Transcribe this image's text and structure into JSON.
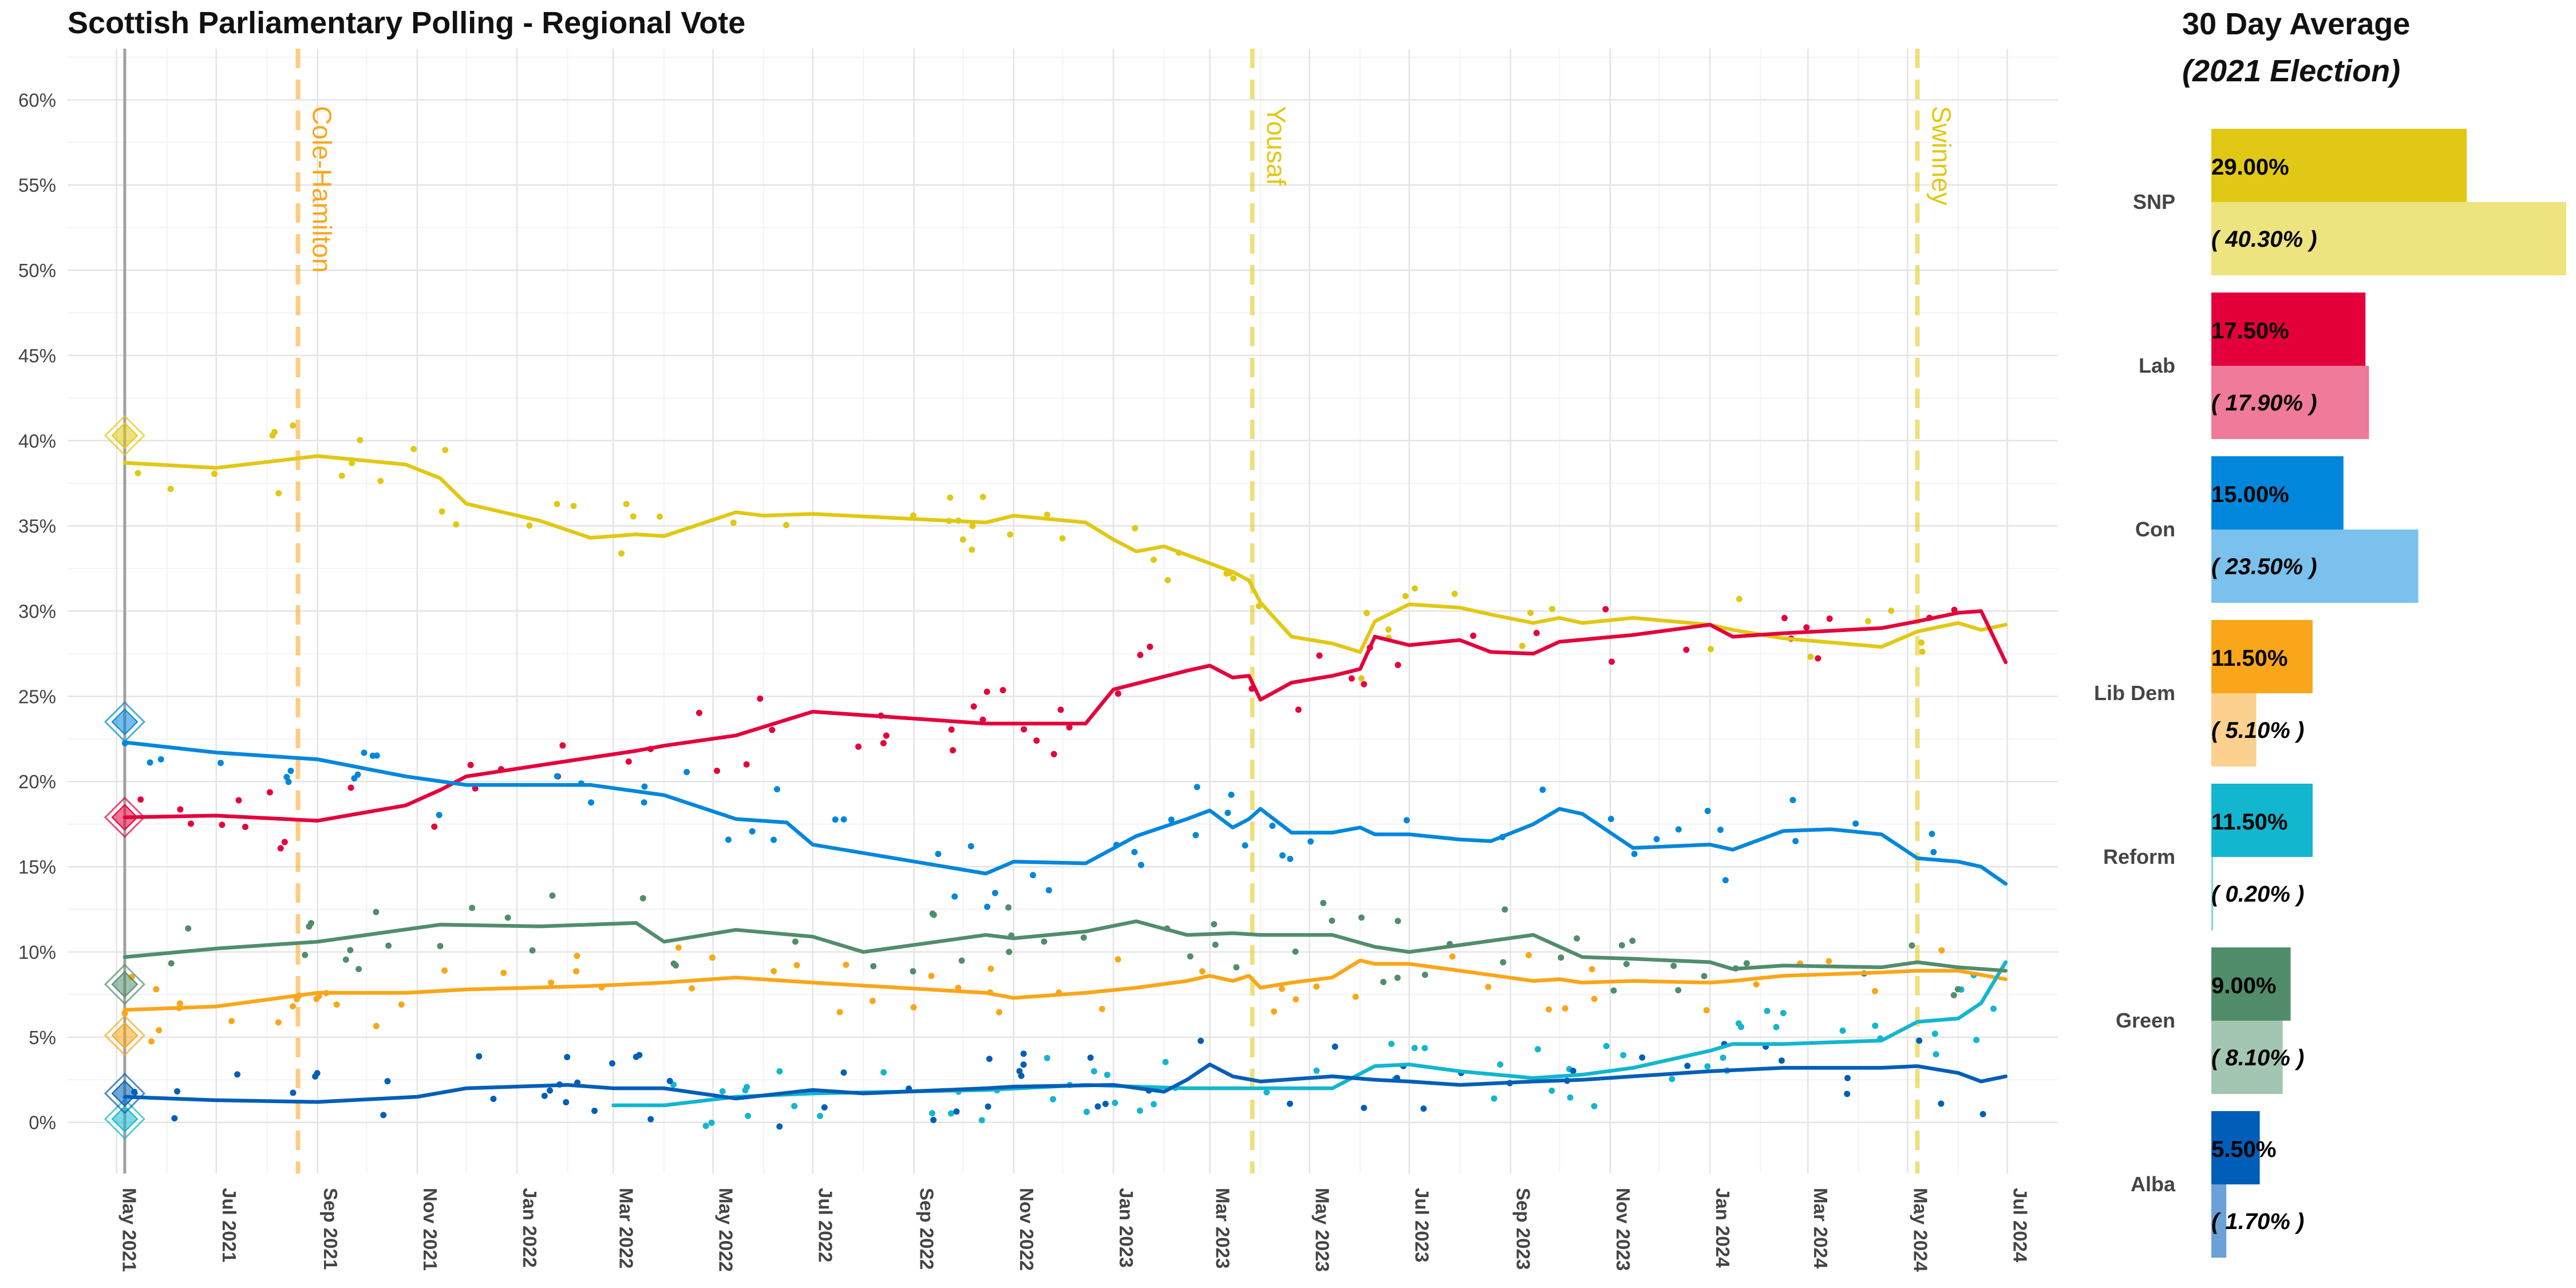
{
  "chart_data": [
    {
      "type": "line",
      "title": "Scottish Parliamentary Polling - Regional Vote",
      "xlabel": "",
      "ylabel": "",
      "ylim": [
        -3,
        63
      ],
      "xlim": [
        "2021-04-01",
        "2024-08-01"
      ],
      "y_ticks": [
        "0%",
        "5%",
        "10%",
        "15%",
        "20%",
        "25%",
        "30%",
        "35%",
        "40%",
        "45%",
        "50%",
        "55%",
        "60%"
      ],
      "x_ticks": [
        "May 2021",
        "Jul 2021",
        "Sep 2021",
        "Nov 2021",
        "Jan 2022",
        "Mar 2022",
        "May 2022",
        "Jul 2022",
        "Sep 2022",
        "Nov 2022",
        "Jan 2023",
        "Mar 2023",
        "May 2023",
        "Jul 2023",
        "Sep 2023",
        "Nov 2023",
        "Jan 2024",
        "Mar 2024",
        "May 2024",
        "Jul 2024"
      ],
      "grid": true,
      "election_date": "2021-05-06",
      "leader_changes": [
        {
          "label": "Cole-Hamilton",
          "date": "2021-08-20",
          "color": "#FAA61A"
        },
        {
          "label": "Yousaf",
          "date": "2023-03-27",
          "color": "#E1C814"
        },
        {
          "label": "Swinney",
          "date": "2024-05-07",
          "color": "#E1C814"
        }
      ],
      "series": [
        {
          "name": "SNP",
          "color": "#E1C814",
          "election_result": 40.3,
          "x": [
            "2021-05-06",
            "2021-07-01",
            "2021-09-01",
            "2021-10-25",
            "2021-11-15",
            "2021-12-01",
            "2022-01-15",
            "2022-02-15",
            "2022-03-15",
            "2022-04-01",
            "2022-05-15",
            "2022-06-01",
            "2022-07-01",
            "2022-10-15",
            "2022-11-01",
            "2022-12-15",
            "2023-01-01",
            "2023-01-15",
            "2023-02-01",
            "2023-02-15",
            "2023-03-01",
            "2023-03-15",
            "2023-03-25",
            "2023-04-01",
            "2023-04-20",
            "2023-05-15",
            "2023-06-01",
            "2023-06-10",
            "2023-07-01",
            "2023-08-01",
            "2023-08-20",
            "2023-09-15",
            "2023-10-01",
            "2023-10-15",
            "2023-11-15",
            "2024-01-01",
            "2024-01-15",
            "2024-02-15",
            "2024-04-15",
            "2024-05-07",
            "2024-06-01",
            "2024-06-15",
            "2024-06-30"
          ],
          "y": [
            38.7,
            38.4,
            39.1,
            38.6,
            37.8,
            36.3,
            35.3,
            34.3,
            34.5,
            34.4,
            35.8,
            35.6,
            35.7,
            35.2,
            35.6,
            35.2,
            34.2,
            33.5,
            33.8,
            33.3,
            32.8,
            32.3,
            31.8,
            30.5,
            28.5,
            28.1,
            27.6,
            29.4,
            30.4,
            30.2,
            29.8,
            29.3,
            29.6,
            29.3,
            29.6,
            29.2,
            28.9,
            28.4,
            27.9,
            28.8,
            29.3,
            28.9,
            29.2
          ]
        },
        {
          "name": "Lab",
          "color": "#E4003B",
          "election_result": 17.9,
          "x": [
            "2021-05-06",
            "2021-07-01",
            "2021-09-01",
            "2021-10-25",
            "2021-11-15",
            "2021-12-01",
            "2022-02-01",
            "2022-03-15",
            "2022-04-01",
            "2022-05-15",
            "2022-07-01",
            "2022-10-15",
            "2022-11-01",
            "2022-12-15",
            "2023-01-01",
            "2023-02-15",
            "2023-03-01",
            "2023-03-15",
            "2023-03-25",
            "2023-04-01",
            "2023-04-20",
            "2023-05-15",
            "2023-06-01",
            "2023-06-10",
            "2023-07-01",
            "2023-08-01",
            "2023-08-20",
            "2023-09-15",
            "2023-10-01",
            "2023-11-15",
            "2024-01-01",
            "2024-01-15",
            "2024-02-15",
            "2024-04-15",
            "2024-05-07",
            "2024-06-01",
            "2024-06-15",
            "2024-06-30"
          ],
          "y": [
            17.9,
            18.0,
            17.7,
            18.6,
            19.5,
            20.3,
            21.2,
            21.8,
            22.1,
            22.7,
            24.1,
            23.4,
            23.4,
            23.4,
            25.4,
            26.5,
            26.8,
            26.1,
            26.2,
            24.8,
            25.8,
            26.2,
            26.6,
            28.5,
            28.0,
            28.3,
            27.6,
            27.5,
            28.2,
            28.6,
            29.2,
            28.5,
            28.7,
            29.0,
            29.4,
            29.9,
            30.0,
            27.0
          ]
        },
        {
          "name": "Con",
          "color": "#0087DC",
          "election_result": 23.5,
          "x": [
            "2021-05-06",
            "2021-07-01",
            "2021-09-01",
            "2021-10-25",
            "2021-12-01",
            "2022-02-15",
            "2022-04-01",
            "2022-05-15",
            "2022-06-15",
            "2022-07-01",
            "2022-10-15",
            "2022-11-01",
            "2022-12-15",
            "2023-01-15",
            "2023-02-15",
            "2023-03-01",
            "2023-03-15",
            "2023-03-25",
            "2023-04-01",
            "2023-04-20",
            "2023-05-15",
            "2023-06-01",
            "2023-06-10",
            "2023-07-01",
            "2023-08-01",
            "2023-08-20",
            "2023-09-15",
            "2023-10-01",
            "2023-10-15",
            "2023-11-15",
            "2024-01-01",
            "2024-01-15",
            "2024-02-15",
            "2024-03-15",
            "2024-04-15",
            "2024-05-07",
            "2024-06-01",
            "2024-06-15",
            "2024-06-30"
          ],
          "y": [
            22.3,
            21.7,
            21.3,
            20.3,
            19.8,
            19.8,
            19.2,
            17.8,
            17.6,
            16.3,
            14.6,
            15.3,
            15.2,
            16.8,
            17.8,
            18.3,
            17.3,
            17.8,
            18.4,
            17.0,
            17.0,
            17.3,
            16.9,
            16.9,
            16.6,
            16.5,
            17.5,
            18.4,
            18.1,
            16.1,
            16.3,
            16.0,
            17.1,
            17.2,
            16.9,
            15.5,
            15.3,
            15.0,
            14.0
          ]
        },
        {
          "name": "Lib Dem",
          "color": "#FAA61A",
          "election_result": 5.1,
          "x": [
            "2021-05-06",
            "2021-07-01",
            "2021-09-01",
            "2021-10-25",
            "2021-12-01",
            "2022-02-15",
            "2022-04-01",
            "2022-05-15",
            "2022-07-01",
            "2022-10-15",
            "2022-11-01",
            "2022-12-15",
            "2023-01-15",
            "2023-02-15",
            "2023-03-01",
            "2023-03-15",
            "2023-03-25",
            "2023-04-01",
            "2023-04-20",
            "2023-05-15",
            "2023-06-01",
            "2023-06-10",
            "2023-07-01",
            "2023-08-01",
            "2023-09-15",
            "2023-10-01",
            "2023-10-15",
            "2023-11-15",
            "2024-01-01",
            "2024-01-15",
            "2024-02-15",
            "2024-04-15",
            "2024-05-07",
            "2024-06-01",
            "2024-06-30"
          ],
          "y": [
            6.6,
            6.8,
            7.6,
            7.6,
            7.8,
            8.0,
            8.2,
            8.5,
            8.2,
            7.6,
            7.3,
            7.6,
            7.9,
            8.3,
            8.6,
            8.3,
            8.6,
            7.9,
            8.2,
            8.5,
            9.5,
            9.3,
            9.3,
            8.9,
            8.3,
            8.4,
            8.2,
            8.3,
            8.2,
            8.3,
            8.6,
            8.8,
            8.9,
            8.9,
            8.4
          ]
        },
        {
          "name": "Reform",
          "color": "#12B6CF",
          "election_result": 0.2,
          "x": [
            "2022-03-01",
            "2022-04-01",
            "2022-05-15",
            "2022-07-01",
            "2022-10-15",
            "2022-12-15",
            "2023-02-15",
            "2023-04-01",
            "2023-05-15",
            "2023-06-10",
            "2023-07-01",
            "2023-08-01",
            "2023-09-15",
            "2023-10-15",
            "2023-11-15",
            "2024-01-01",
            "2024-01-15",
            "2024-02-15",
            "2024-04-15",
            "2024-05-07",
            "2024-06-01",
            "2024-06-15",
            "2024-06-30"
          ],
          "y": [
            1.0,
            1.0,
            1.5,
            1.7,
            1.9,
            2.2,
            2.0,
            2.0,
            2.0,
            3.3,
            3.4,
            3.0,
            2.6,
            2.8,
            3.2,
            4.2,
            4.6,
            4.6,
            4.8,
            5.9,
            6.1,
            7.0,
            9.4
          ]
        },
        {
          "name": "Green",
          "color": "#528D6B",
          "election_result": 8.1,
          "x": [
            "2021-05-06",
            "2021-07-01",
            "2021-09-01",
            "2021-11-15",
            "2022-01-15",
            "2022-03-15",
            "2022-04-01",
            "2022-05-15",
            "2022-07-01",
            "2022-08-01",
            "2022-10-15",
            "2022-11-01",
            "2022-12-15",
            "2023-01-15",
            "2023-02-15",
            "2023-03-15",
            "2023-04-01",
            "2023-05-15",
            "2023-06-10",
            "2023-07-01",
            "2023-08-01",
            "2023-09-15",
            "2023-10-15",
            "2023-11-15",
            "2024-01-01",
            "2024-01-15",
            "2024-02-15",
            "2024-04-15",
            "2024-05-07",
            "2024-06-01",
            "2024-06-30"
          ],
          "y": [
            9.7,
            10.2,
            10.6,
            11.6,
            11.5,
            11.7,
            10.6,
            11.3,
            10.9,
            10.0,
            11.0,
            10.8,
            11.2,
            11.8,
            11.0,
            11.1,
            11.0,
            11.0,
            10.3,
            10.0,
            10.4,
            11.0,
            9.7,
            9.6,
            9.4,
            9.0,
            9.2,
            9.1,
            9.4,
            9.1,
            8.9
          ]
        },
        {
          "name": "Alba",
          "color": "#005EB8",
          "election_result": 1.7,
          "x": [
            "2021-05-06",
            "2021-07-01",
            "2021-09-01",
            "2021-11-01",
            "2021-12-01",
            "2022-02-01",
            "2022-03-01",
            "2022-04-01",
            "2022-05-15",
            "2022-07-01",
            "2022-08-01",
            "2022-10-15",
            "2022-11-01",
            "2023-01-01",
            "2023-02-01",
            "2023-02-15",
            "2023-03-01",
            "2023-03-15",
            "2023-04-01",
            "2023-05-15",
            "2023-06-10",
            "2023-07-01",
            "2023-08-01",
            "2023-09-15",
            "2023-10-15",
            "2023-11-15",
            "2024-01-01",
            "2024-02-15",
            "2024-04-15",
            "2024-05-07",
            "2024-06-01",
            "2024-06-15",
            "2024-06-30"
          ],
          "y": [
            1.5,
            1.3,
            1.2,
            1.5,
            2.0,
            2.2,
            2.0,
            2.0,
            1.4,
            1.9,
            1.7,
            2.0,
            2.1,
            2.2,
            1.8,
            2.5,
            3.4,
            2.7,
            2.4,
            2.7,
            2.5,
            2.4,
            2.2,
            2.4,
            2.5,
            2.7,
            3.0,
            3.2,
            3.2,
            3.3,
            2.9,
            2.4,
            2.7
          ]
        }
      ]
    },
    {
      "type": "bar",
      "title": "30 Day Average",
      "subtitle": "(2021 Election)",
      "categories": [
        "SNP",
        "Lab",
        "Con",
        "Lib Dem",
        "Reform",
        "Green",
        "Alba"
      ],
      "colors": [
        "#E1C814",
        "#E4003B",
        "#0087DC",
        "#FAA61A",
        "#12B6CF",
        "#528D6B",
        "#005EB8"
      ],
      "election_colors": [
        "#EDE37F",
        "#F07A99",
        "#7AC1EE",
        "#FCD08E",
        "#7FD6E4",
        "#A3C6B2",
        "#6AA1D8"
      ],
      "series": [
        {
          "name": "30 Day Average",
          "values": [
            29.0,
            17.5,
            15.0,
            11.5,
            11.5,
            9.0,
            5.5
          ],
          "labels": [
            "29.00%",
            "17.50%",
            "15.00%",
            "11.50%",
            "11.50%",
            "9.00%",
            "5.50%"
          ]
        },
        {
          "name": "2021 Election",
          "values": [
            40.3,
            17.9,
            23.5,
            5.1,
            0.2,
            8.1,
            1.7
          ],
          "labels": [
            "( 40.30% )",
            "( 17.90% )",
            "( 23.50% )",
            "( 5.10% )",
            "( 0.20% )",
            "( 8.10% )",
            "( 1.70% )"
          ]
        }
      ]
    }
  ]
}
